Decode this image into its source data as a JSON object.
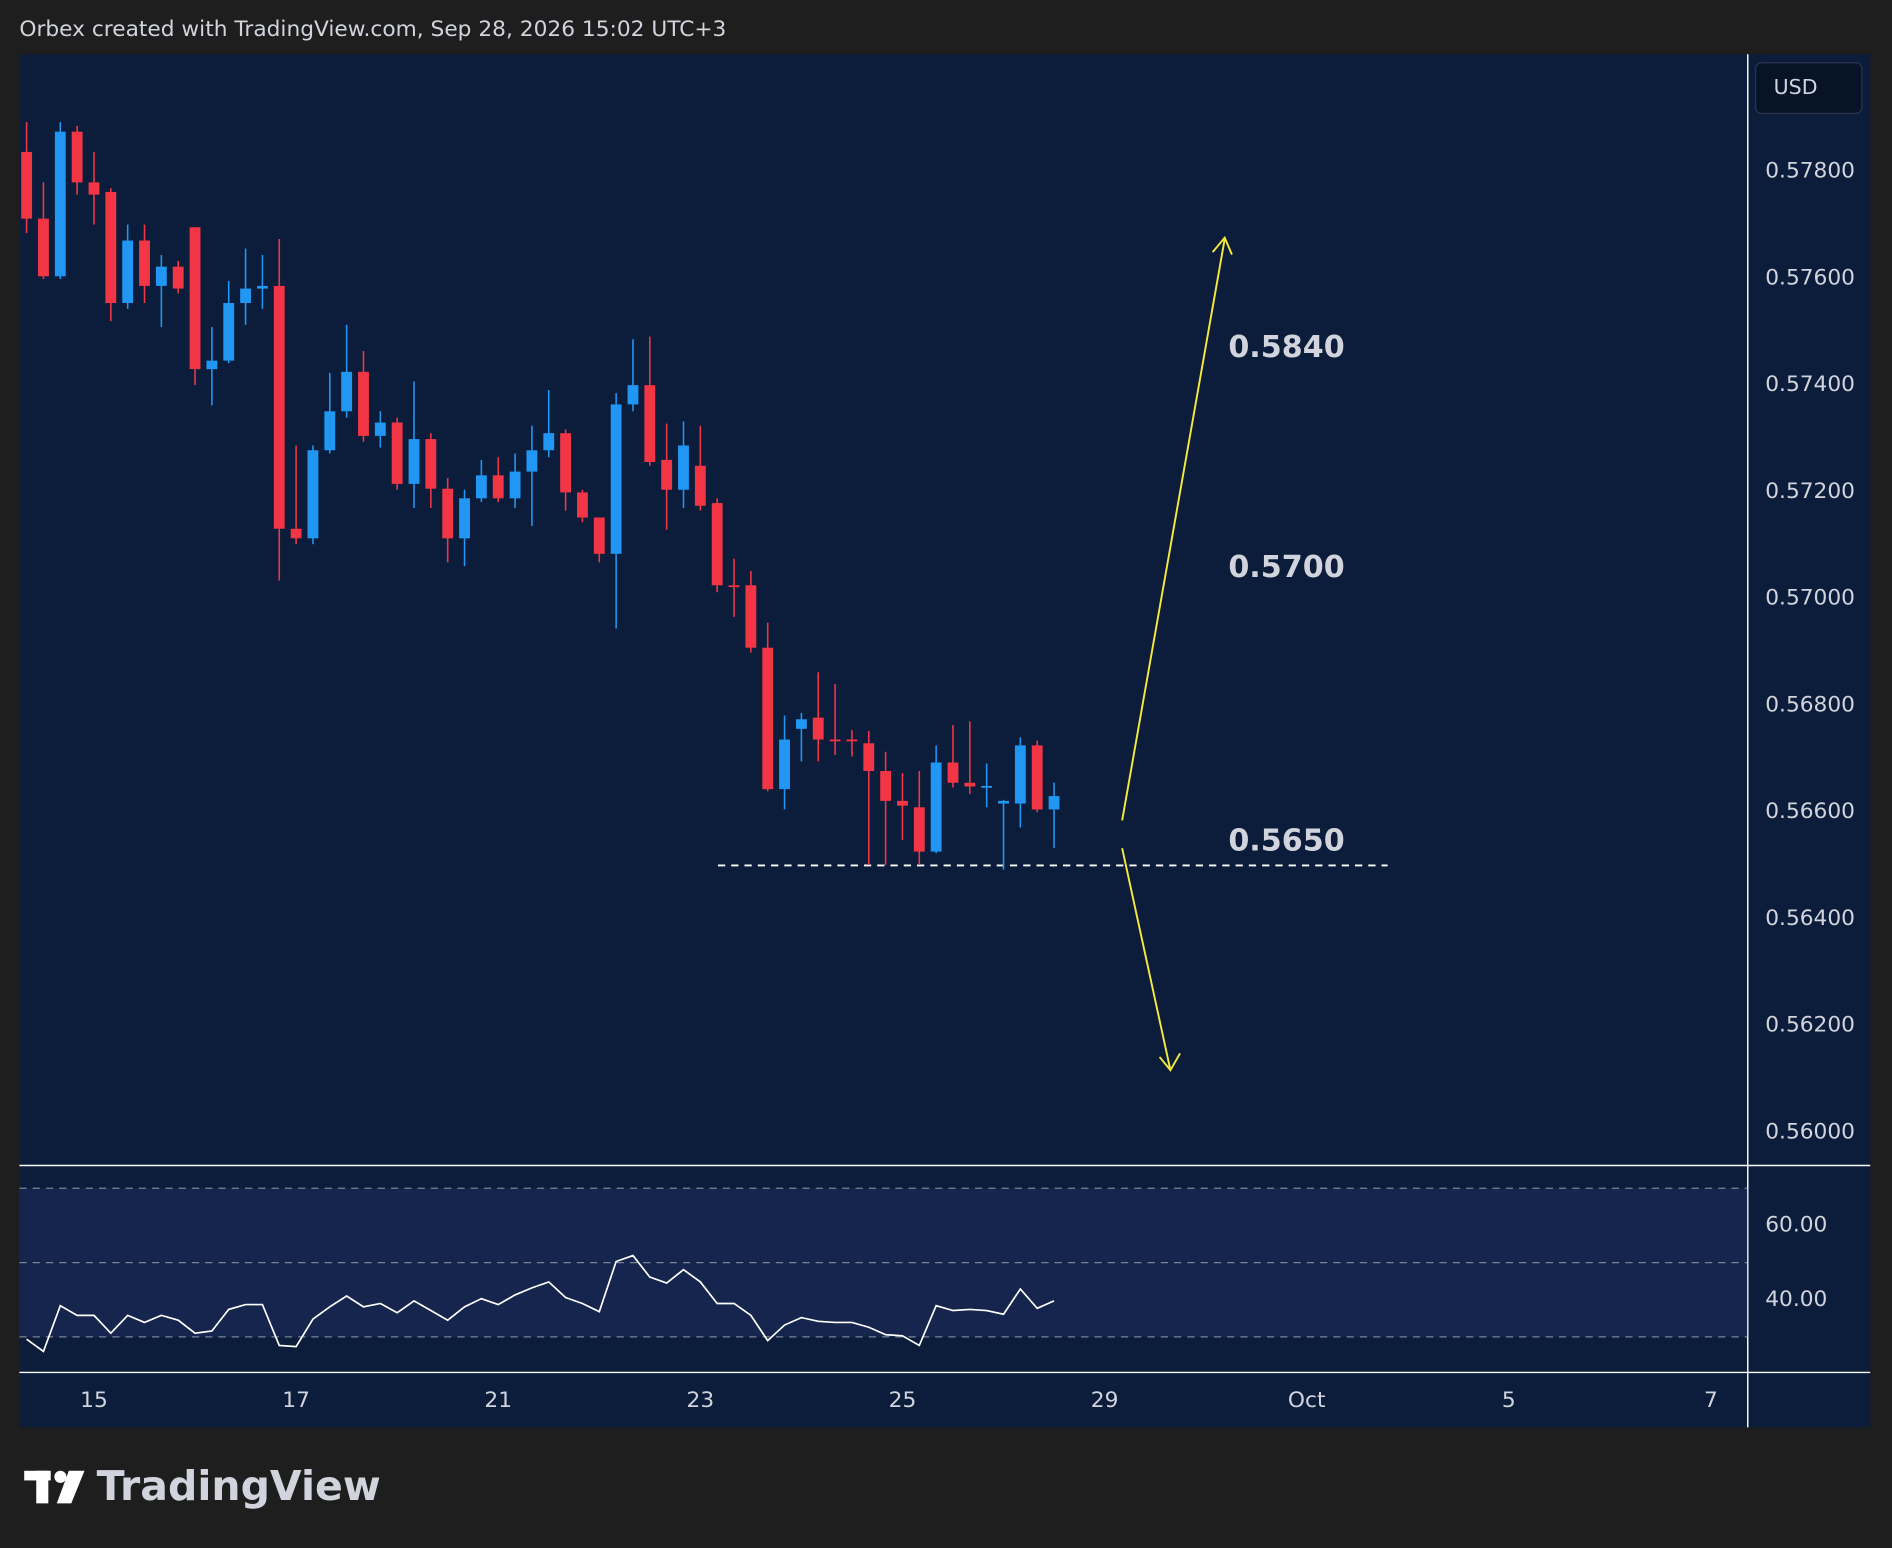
{
  "header_text": "Orbex created with TradingView.com, Sep 28, 2026 15:02 UTC+3",
  "currency": "USD",
  "logo": "TradingView",
  "chart_data": [
    {
      "type": "candlestick",
      "up_color": "#2196f3",
      "down_color": "#f23645",
      "xlim": [
        -0.43,
        102.15
      ],
      "xticks": [
        {
          "value": 4,
          "label": "15"
        },
        {
          "value": 16,
          "label": "17"
        },
        {
          "value": 28,
          "label": "21"
        },
        {
          "value": 40,
          "label": "23"
        },
        {
          "value": 52,
          "label": "25"
        },
        {
          "value": 64,
          "label": "29"
        },
        {
          "value": 76,
          "label": "Oct"
        },
        {
          "value": 88,
          "label": "5"
        },
        {
          "value": 100,
          "label": "7"
        }
      ],
      "ylim": [
        0.5594,
        0.5802
      ],
      "yticks": [
        {
          "value": 0.578,
          "label": "0.57800"
        },
        {
          "value": 0.576,
          "label": "0.57600"
        },
        {
          "value": 0.574,
          "label": "0.57400"
        },
        {
          "value": 0.572,
          "label": "0.57200"
        },
        {
          "value": 0.57,
          "label": "0.57000"
        },
        {
          "value": 0.568,
          "label": "0.56800"
        },
        {
          "value": 0.566,
          "label": "0.56600"
        },
        {
          "value": 0.564,
          "label": "0.56400"
        },
        {
          "value": 0.562,
          "label": "0.56200"
        },
        {
          "value": 0.56,
          "label": "0.56000"
        }
      ],
      "level": 0.565,
      "annotations": [
        "0.5840",
        "0.5700",
        "0.5650"
      ],
      "ohlc": [
        [
          0.57837,
          0.57893,
          0.57685,
          0.57712
        ],
        [
          0.57712,
          0.5778,
          0.57599,
          0.57604
        ],
        [
          0.57604,
          0.57893,
          0.57599,
          0.57875
        ],
        [
          0.57875,
          0.57886,
          0.57757,
          0.5778
        ],
        [
          0.5778,
          0.57837,
          0.57701,
          0.57757
        ],
        [
          0.57762,
          0.57769,
          0.5752,
          0.57554
        ],
        [
          0.57554,
          0.57701,
          0.57543,
          0.57671
        ],
        [
          0.57671,
          0.57701,
          0.57554,
          0.57586
        ],
        [
          0.57586,
          0.57644,
          0.57509,
          0.57622
        ],
        [
          0.57622,
          0.57633,
          0.57572,
          0.57581
        ],
        [
          0.57696,
          0.57696,
          0.574,
          0.5743
        ],
        [
          0.5743,
          0.57509,
          0.57362,
          0.57446
        ],
        [
          0.57446,
          0.57595,
          0.57441,
          0.57554
        ],
        [
          0.57554,
          0.57656,
          0.57513,
          0.57581
        ],
        [
          0.57581,
          0.57644,
          0.57543,
          0.57586
        ],
        [
          0.57586,
          0.57674,
          0.57034,
          0.57131
        ],
        [
          0.57131,
          0.57287,
          0.57102,
          0.57113
        ],
        [
          0.57113,
          0.57287,
          0.57102,
          0.57278
        ],
        [
          0.57278,
          0.57423,
          0.57272,
          0.57351
        ],
        [
          0.57351,
          0.57513,
          0.57339,
          0.57425
        ],
        [
          0.57425,
          0.57464,
          0.57294,
          0.57305
        ],
        [
          0.57305,
          0.57351,
          0.57283,
          0.5733
        ],
        [
          0.5733,
          0.57339,
          0.57204,
          0.57215
        ],
        [
          0.57215,
          0.57407,
          0.5717,
          0.57299
        ],
        [
          0.57299,
          0.5731,
          0.5717,
          0.57206
        ],
        [
          0.57206,
          0.57226,
          0.57068,
          0.57113
        ],
        [
          0.57113,
          0.57204,
          0.57061,
          0.57188
        ],
        [
          0.57188,
          0.5726,
          0.57181,
          0.57231
        ],
        [
          0.57231,
          0.57265,
          0.57181,
          0.57188
        ],
        [
          0.57188,
          0.57272,
          0.5717,
          0.57238
        ],
        [
          0.57238,
          0.57324,
          0.57136,
          0.57278
        ],
        [
          0.57278,
          0.57391,
          0.57265,
          0.5731
        ],
        [
          0.5731,
          0.57317,
          0.57165,
          0.57199
        ],
        [
          0.57199,
          0.57204,
          0.57143,
          0.57152
        ],
        [
          0.57152,
          0.57152,
          0.57068,
          0.57084
        ],
        [
          0.57084,
          0.57385,
          0.56944,
          0.57364
        ],
        [
          0.57364,
          0.57486,
          0.57351,
          0.574
        ],
        [
          0.574,
          0.57491,
          0.57249,
          0.57256
        ],
        [
          0.5726,
          0.57328,
          0.57129,
          0.57204
        ],
        [
          0.57204,
          0.57332,
          0.5717,
          0.57287
        ],
        [
          0.57249,
          0.57324,
          0.57165,
          0.57174
        ],
        [
          0.57179,
          0.57188,
          0.57012,
          0.57025
        ],
        [
          0.57025,
          0.57075,
          0.56966,
          0.57024
        ],
        [
          0.57025,
          0.57052,
          0.56899,
          0.56908
        ],
        [
          0.56908,
          0.56955,
          0.56639,
          0.56643
        ],
        [
          0.56643,
          0.56781,
          0.56605,
          0.56736
        ],
        [
          0.56756,
          0.56786,
          0.56695,
          0.56774
        ],
        [
          0.56777,
          0.56862,
          0.56695,
          0.56736
        ],
        [
          0.56736,
          0.5684,
          0.56707,
          0.56735
        ],
        [
          0.56736,
          0.56754,
          0.56704,
          0.56735
        ],
        [
          0.56729,
          0.56752,
          0.56501,
          0.56677
        ],
        [
          0.56677,
          0.56713,
          0.56501,
          0.56621
        ],
        [
          0.56621,
          0.56673,
          0.56548,
          0.56612
        ],
        [
          0.56609,
          0.56677,
          0.56501,
          0.56526
        ],
        [
          0.56526,
          0.56725,
          0.56523,
          0.56693
        ],
        [
          0.56693,
          0.56763,
          0.56646,
          0.56655
        ],
        [
          0.56655,
          0.5677,
          0.56634,
          0.56648
        ],
        [
          0.56648,
          0.56691,
          0.56609,
          0.56649
        ],
        [
          0.56616,
          0.56623,
          0.56492,
          0.56621
        ],
        [
          0.56616,
          0.5674,
          0.56571,
          0.56725
        ],
        [
          0.56725,
          0.56734,
          0.566,
          0.56605
        ],
        [
          0.56605,
          0.56655,
          0.56533,
          0.5663
        ]
      ]
    },
    {
      "type": "line",
      "color": "#ffffff",
      "xlim": [
        -0.43,
        102.15
      ],
      "ylim": [
        20.6,
        75.8
      ],
      "yticks": [
        {
          "value": 60,
          "label": "60.00"
        },
        {
          "value": 40,
          "label": "40.00"
        }
      ],
      "levels": [
        70,
        50,
        30
      ],
      "values": [
        29.4,
        26.1,
        38.4,
        35.8,
        35.8,
        31.0,
        35.8,
        33.9,
        35.8,
        34.5,
        31.0,
        31.6,
        37.4,
        38.7,
        38.7,
        27.7,
        27.4,
        34.8,
        38.1,
        41.0,
        38.1,
        39.0,
        36.5,
        39.7,
        37.1,
        34.5,
        38.1,
        40.3,
        38.7,
        41.3,
        43.2,
        44.8,
        40.6,
        39.0,
        36.8,
        50.3,
        51.9,
        46.1,
        44.5,
        48.1,
        44.8,
        39.0,
        39.0,
        35.8,
        29.0,
        33.2,
        35.2,
        34.2,
        33.9,
        33.9,
        32.6,
        30.6,
        30.3,
        27.7,
        38.4,
        37.1,
        37.4,
        37.1,
        36.1,
        42.9,
        37.7,
        39.7
      ]
    }
  ]
}
